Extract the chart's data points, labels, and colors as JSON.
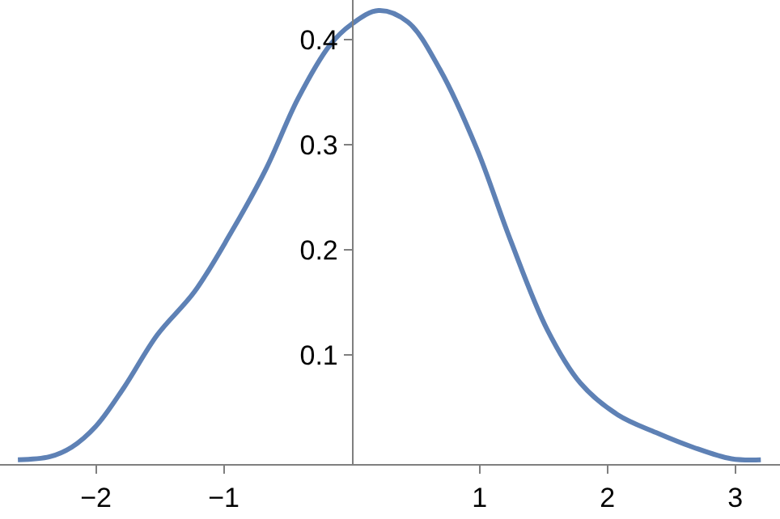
{
  "chart_data": {
    "type": "line",
    "x": [
      -2.61,
      -2.36,
      -2.19,
      -2.0,
      -1.78,
      -1.52,
      -1.23,
      -0.95,
      -0.67,
      -0.42,
      -0.17,
      0.0,
      0.21,
      0.44,
      0.69,
      0.98,
      1.24,
      1.53,
      1.79,
      2.08,
      2.38,
      2.67,
      2.97,
      3.2
    ],
    "series": [
      {
        "color": "#5e81b5",
        "values": [
          0.0,
          0.003,
          0.012,
          0.032,
          0.069,
          0.119,
          0.16,
          0.215,
          0.277,
          0.344,
          0.395,
          0.415,
          0.428,
          0.417,
          0.372,
          0.296,
          0.21,
          0.124,
          0.073,
          0.043,
          0.026,
          0.012,
          0.001,
          0.0
        ]
      }
    ],
    "xlim": [
      -2.75,
      3.35
    ],
    "ylim": [
      -0.004,
      0.438
    ],
    "xticks": [
      -2,
      -1,
      1,
      2,
      3
    ],
    "yticks": [
      0.1,
      0.2,
      0.3,
      0.4
    ],
    "marker": "none",
    "line_style": "solid"
  }
}
